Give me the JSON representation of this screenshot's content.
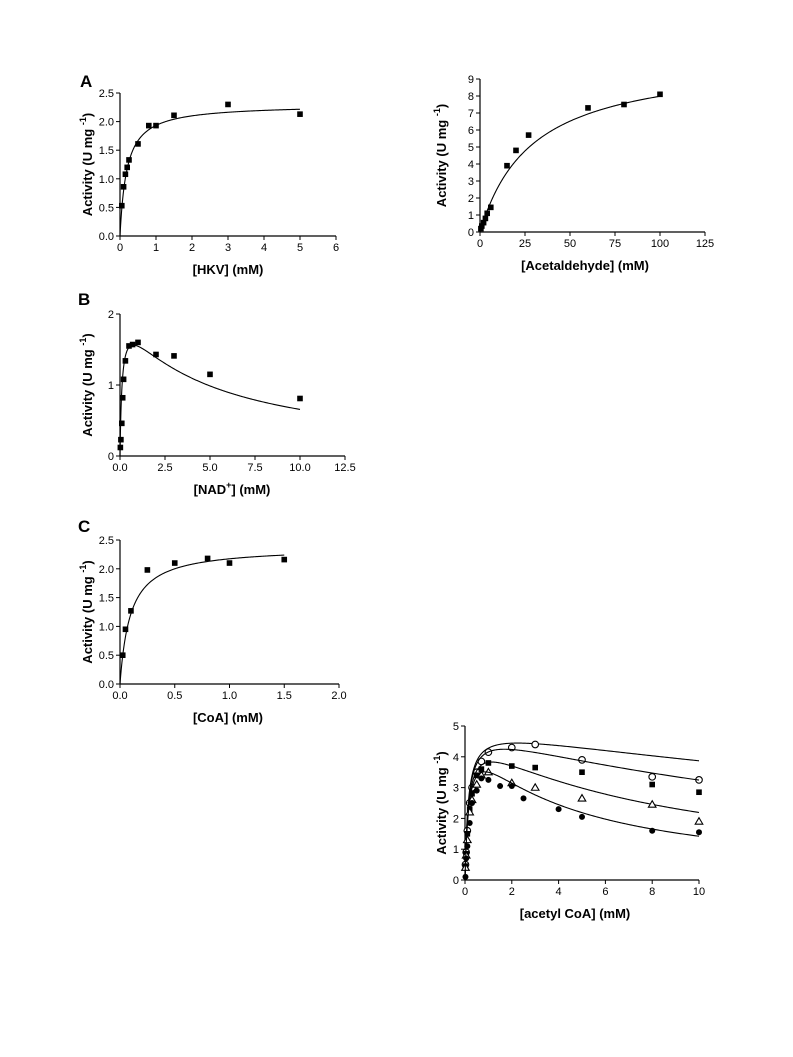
{
  "panel_labels": [
    "A",
    "B",
    "C"
  ],
  "chart_data": [
    {
      "type": "scatter",
      "panel": "A",
      "xlabel": "[HKV] (mM)",
      "ylabel": "Activity (U mg",
      "ylabel_sup": "-1",
      "ylabel_close": ")",
      "xlim": [
        0,
        6
      ],
      "ylim": [
        0,
        2.5
      ],
      "xticks": [
        0,
        1,
        2,
        3,
        4,
        5,
        6
      ],
      "yticks": [
        0.0,
        0.5,
        1.0,
        1.5,
        2.0,
        2.5
      ],
      "xtick_labels": [
        "0",
        "1",
        "2",
        "3",
        "4",
        "5",
        "6"
      ],
      "ytick_labels": [
        "0.0",
        "0.5",
        "1.0",
        "1.5",
        "2.0",
        "2.5"
      ],
      "grid": false,
      "series": [
        {
          "marker": "filled-square",
          "x": [
            0.05,
            0.1,
            0.15,
            0.2,
            0.25,
            0.5,
            0.8,
            1.0,
            1.5,
            3.0,
            5.0
          ],
          "y": [
            0.53,
            0.86,
            1.08,
            1.2,
            1.33,
            1.61,
            1.93,
            1.93,
            2.11,
            2.3,
            2.13
          ],
          "fit": {
            "model": "michaelis-menten",
            "vmax": 2.3,
            "km": 0.19
          }
        }
      ]
    },
    {
      "type": "scatter",
      "panel": "",
      "xlabel": "[Acetaldehyde] (mM)",
      "ylabel": "Activity (U mg",
      "ylabel_sup": "-1",
      "ylabel_close": ")",
      "xlim": [
        0,
        125
      ],
      "ylim": [
        0,
        9
      ],
      "xticks": [
        0,
        25,
        50,
        75,
        100,
        125
      ],
      "yticks": [
        0,
        1,
        2,
        3,
        4,
        5,
        6,
        7,
        8,
        9
      ],
      "xtick_labels": [
        "0",
        "25",
        "50",
        "75",
        "100",
        "125"
      ],
      "ytick_labels": [
        "0",
        "1",
        "2",
        "3",
        "4",
        "5",
        "6",
        "7",
        "8",
        "9"
      ],
      "grid": false,
      "series": [
        {
          "marker": "filled-square",
          "x": [
            0.5,
            1,
            2,
            3,
            4,
            6,
            15,
            20,
            27,
            60,
            80,
            100
          ],
          "y": [
            0.2,
            0.35,
            0.55,
            0.8,
            1.1,
            1.45,
            3.9,
            4.8,
            5.7,
            7.3,
            7.5,
            8.1
          ],
          "fit": {
            "model": "michaelis-menten",
            "vmax": 10.3,
            "km": 29
          }
        }
      ]
    },
    {
      "type": "scatter",
      "panel": "B",
      "xlabel": "[NAD",
      "xlabel_sup": "+",
      "xlabel_close": "] (mM)",
      "ylabel": "Activity (U mg",
      "ylabel_sup": "-1",
      "ylabel_close": ")",
      "xlim": [
        0,
        12.5
      ],
      "ylim": [
        0,
        2
      ],
      "xticks": [
        0,
        2.5,
        5.0,
        7.5,
        10.0,
        12.5
      ],
      "yticks": [
        0,
        1,
        2
      ],
      "xtick_labels": [
        "0.0",
        "2.5",
        "5.0",
        "7.5",
        "10.0",
        "12.5"
      ],
      "ytick_labels": [
        "0",
        "1",
        "2"
      ],
      "grid": false,
      "series": [
        {
          "marker": "filled-square",
          "x": [
            0.02,
            0.05,
            0.1,
            0.15,
            0.2,
            0.3,
            0.5,
            0.7,
            1.0,
            2.0,
            3.0,
            5.0,
            10.0
          ],
          "y": [
            0.12,
            0.23,
            0.46,
            0.82,
            1.08,
            1.34,
            1.55,
            1.57,
            1.6,
            1.43,
            1.41,
            1.15,
            0.81
          ],
          "fit": {
            "model": "substrate-inhibition",
            "vmax": 2.06,
            "km": 0.12,
            "ki": 4.7
          }
        }
      ]
    },
    {
      "type": "scatter",
      "panel": "C",
      "xlabel": "[CoA] (mM)",
      "ylabel": "Activity (U mg",
      "ylabel_sup": "-1",
      "ylabel_close": ")",
      "xlim": [
        0,
        2.0
      ],
      "ylim": [
        0,
        2.5
      ],
      "xticks": [
        0,
        0.5,
        1.0,
        1.5,
        2.0
      ],
      "yticks": [
        0.0,
        0.5,
        1.0,
        1.5,
        2.0,
        2.5
      ],
      "xtick_labels": [
        "0.0",
        "0.5",
        "1.0",
        "1.5",
        "2.0"
      ],
      "ytick_labels": [
        "0.0",
        "0.5",
        "1.0",
        "1.5",
        "2.0",
        "2.5"
      ],
      "grid": false,
      "series": [
        {
          "marker": "filled-square",
          "x": [
            0.025,
            0.05,
            0.1,
            0.25,
            0.5,
            0.8,
            1.0,
            1.5
          ],
          "y": [
            0.5,
            0.95,
            1.27,
            1.98,
            2.1,
            2.18,
            2.1,
            2.16
          ],
          "fit": {
            "model": "michaelis-menten",
            "vmax": 2.38,
            "km": 0.095
          }
        }
      ]
    },
    {
      "type": "scatter",
      "panel": "",
      "xlabel": "[acetyl CoA] (mM)",
      "ylabel": "Activity (U mg",
      "ylabel_sup": "-1",
      "ylabel_close": ")",
      "xlim": [
        0,
        10
      ],
      "ylim": [
        0,
        5
      ],
      "xticks": [
        0,
        2,
        4,
        6,
        8,
        10
      ],
      "yticks": [
        0,
        1,
        2,
        3,
        4,
        5
      ],
      "xtick_labels": [
        "0",
        "2",
        "4",
        "6",
        "8",
        "10"
      ],
      "ytick_labels": [
        "0",
        "1",
        "2",
        "3",
        "4",
        "5"
      ],
      "grid": false,
      "series": [
        {
          "marker": "open-circle",
          "x": [
            0.02,
            0.05,
            0.1,
            0.2,
            0.3,
            0.5,
            0.7,
            1.0,
            2.0,
            3.0,
            5.0,
            8.0,
            10.0
          ],
          "y": [
            0.5,
            0.9,
            1.6,
            2.5,
            3.0,
            3.5,
            3.85,
            4.15,
            4.3,
            4.4,
            3.9,
            3.35,
            3.25
          ],
          "fit": {
            "model": "substrate-inhibition",
            "vmax": 5.0,
            "km": 0.14,
            "ki": 36
          }
        },
        {
          "marker": "filled-square",
          "x": [
            0.02,
            0.05,
            0.1,
            0.2,
            0.3,
            0.5,
            0.7,
            1.0,
            2.0,
            3.0,
            5.0,
            8.0,
            10.0
          ],
          "y": [
            0.45,
            0.85,
            1.5,
            2.3,
            2.8,
            3.4,
            3.6,
            3.8,
            3.7,
            3.65,
            3.5,
            3.1,
            2.85
          ],
          "fit": {
            "model": "substrate-inhibition",
            "vmax": 5.0,
            "km": 0.15,
            "ki": 19
          }
        },
        {
          "marker": "open-triangle",
          "x": [
            0.02,
            0.05,
            0.1,
            0.2,
            0.3,
            0.5,
            0.7,
            1.0,
            2.0,
            3.0,
            5.0,
            8.0,
            10.0
          ],
          "y": [
            0.4,
            0.8,
            1.3,
            2.2,
            2.6,
            3.1,
            3.4,
            3.5,
            3.15,
            3.0,
            2.65,
            2.45,
            1.9
          ],
          "fit": {
            "model": "substrate-inhibition",
            "vmax": 4.9,
            "km": 0.16,
            "ki": 8.2
          }
        },
        {
          "marker": "filled-circle",
          "x": [
            0.02,
            0.05,
            0.1,
            0.2,
            0.3,
            0.5,
            0.7,
            1.0,
            1.5,
            2.0,
            2.5,
            4.0,
            5.0,
            8.0,
            10.0
          ],
          "y": [
            0.1,
            0.7,
            1.1,
            1.85,
            2.5,
            2.9,
            3.3,
            3.25,
            3.05,
            3.05,
            2.65,
            2.3,
            2.05,
            1.6,
            1.55
          ],
          "fit": {
            "model": "substrate-inhibition",
            "vmax": 5.0,
            "km": 0.18,
            "ki": 4.0
          }
        }
      ]
    }
  ]
}
